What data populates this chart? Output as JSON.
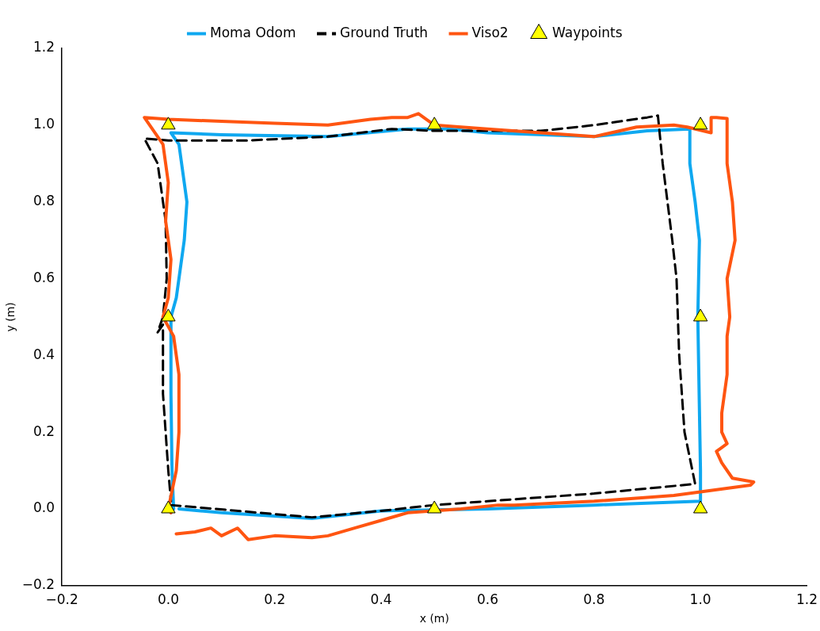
{
  "chart_data": {
    "type": "line",
    "xlabel": "x (m)",
    "ylabel": "y (m)",
    "xlim": [
      -0.2,
      1.2
    ],
    "ylim": [
      -0.2,
      1.2
    ],
    "xticks": [
      {
        "value": -0.2,
        "label": "−0.2"
      },
      {
        "value": 0,
        "label": "0.0"
      },
      {
        "value": 0.2,
        "label": "0.2"
      },
      {
        "value": 0.4,
        "label": "0.4"
      },
      {
        "value": 0.6,
        "label": "0.6"
      },
      {
        "value": 0.8,
        "label": "0.8"
      },
      {
        "value": 1,
        "label": "1.0"
      },
      {
        "value": 1.2,
        "label": "1.2"
      }
    ],
    "yticks": [
      {
        "value": -0.2,
        "label": "−0.2"
      },
      {
        "value": 0,
        "label": "0.0"
      },
      {
        "value": 0.2,
        "label": "0.2"
      },
      {
        "value": 0.4,
        "label": "0.4"
      },
      {
        "value": 0.6,
        "label": "0.6"
      },
      {
        "value": 0.8,
        "label": "0.8"
      },
      {
        "value": 1,
        "label": "1.0"
      },
      {
        "value": 1.2,
        "label": "1.2"
      }
    ],
    "grid": false,
    "legend": "top",
    "series": [
      {
        "name": "Moma Odom",
        "color": "#0fa8f0",
        "line_style": "solid",
        "marker": "none",
        "x": [
          0.02,
          0.1,
          0.27,
          0.4,
          0.6,
          0.8,
          1.0,
          1.0,
          0.995,
          0.998,
          0.99,
          0.98,
          0.98,
          0.9,
          0.8,
          0.6,
          0.53,
          0.45,
          0.3,
          0.1,
          0.005,
          0.02,
          0.035,
          0.03,
          0.015,
          0.005,
          0.005,
          0.007,
          0.01
        ],
        "values": [
          0.0,
          -0.01,
          -0.025,
          -0.005,
          0.0,
          0.01,
          0.02,
          0.1,
          0.5,
          0.7,
          0.8,
          0.9,
          0.99,
          0.985,
          0.97,
          0.98,
          0.99,
          0.99,
          0.97,
          0.975,
          0.98,
          0.95,
          0.8,
          0.7,
          0.55,
          0.5,
          0.3,
          0.1,
          0.0
        ]
      },
      {
        "name": "Ground Truth",
        "color": "#000000",
        "line_style": "dashed",
        "marker": "none",
        "x": [
          0.005,
          0.27,
          0.4,
          0.5,
          0.6,
          0.8,
          0.99,
          0.97,
          0.96,
          0.955,
          0.947,
          0.929,
          0.92,
          0.9,
          0.8,
          0.7,
          0.5,
          0.42,
          0.3,
          0.15,
          0.0,
          -0.045,
          -0.02,
          -0.005,
          -0.003,
          -0.01,
          -0.02,
          -0.01,
          -0.01,
          0.0,
          0.005
        ],
        "values": [
          0.01,
          -0.022,
          -0.005,
          0.01,
          0.02,
          0.04,
          0.065,
          0.2,
          0.4,
          0.6,
          0.7,
          0.9,
          1.025,
          1.02,
          1.0,
          0.985,
          0.985,
          0.99,
          0.97,
          0.96,
          0.96,
          0.965,
          0.9,
          0.75,
          0.6,
          0.5,
          0.46,
          0.48,
          0.3,
          0.1,
          0.02
        ]
      },
      {
        "name": "Viso2",
        "color": "#ff5511",
        "line_style": "solid",
        "marker": "none",
        "x": [
          0.015,
          0.05,
          0.08,
          0.1,
          0.13,
          0.15,
          0.2,
          0.27,
          0.3,
          0.35,
          0.4,
          0.45,
          0.55,
          0.62,
          0.65,
          0.8,
          0.95,
          1.094,
          1.1,
          1.06,
          1.04,
          1.03,
          1.04,
          1.05,
          1.04,
          1.04,
          1.05,
          1.05,
          1.055,
          1.05,
          1.065,
          1.06,
          1.05,
          1.05,
          1.05,
          1.03,
          1.02,
          1.02,
          0.975,
          0.95,
          0.88,
          0.8,
          0.7,
          0.6,
          0.5,
          0.47,
          0.45,
          0.42,
          0.38,
          0.3,
          0.2,
          0.1,
          0.0,
          -0.045,
          -0.01,
          0.0,
          -0.005,
          0.005,
          0.0,
          -0.01,
          0.01,
          0.02,
          0.02,
          0.015,
          0.0,
          0.005
        ],
        "values": [
          -0.065,
          -0.06,
          -0.05,
          -0.07,
          -0.05,
          -0.08,
          -0.07,
          -0.075,
          -0.07,
          -0.05,
          -0.03,
          -0.01,
          0.0,
          0.01,
          0.01,
          0.02,
          0.035,
          0.062,
          0.07,
          0.08,
          0.12,
          0.15,
          0.16,
          0.17,
          0.2,
          0.25,
          0.35,
          0.45,
          0.5,
          0.6,
          0.7,
          0.8,
          0.9,
          0.98,
          1.017,
          1.02,
          1.02,
          0.98,
          0.995,
          1.0,
          0.995,
          0.97,
          0.98,
          0.99,
          1.0,
          1.03,
          1.02,
          1.02,
          1.015,
          1.0,
          1.005,
          1.01,
          1.015,
          1.02,
          0.95,
          0.85,
          0.75,
          0.65,
          0.55,
          0.5,
          0.45,
          0.35,
          0.2,
          0.1,
          0.0,
          -0.01
        ]
      },
      {
        "name": "Waypoints",
        "type": "scatter",
        "color": "#ffff00",
        "marker": "triangle",
        "x": [
          0,
          0.5,
          1,
          1,
          1,
          0.5,
          0,
          0
        ],
        "values": [
          0,
          0,
          0,
          0.5,
          1,
          1,
          1,
          0.5
        ]
      }
    ]
  }
}
